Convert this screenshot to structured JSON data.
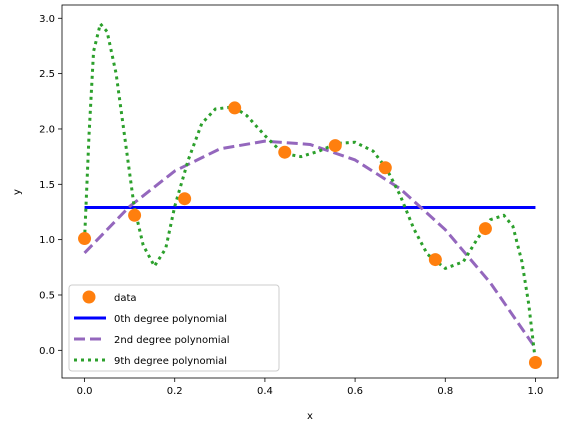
{
  "chart_data": {
    "type": "scatter",
    "xlabel": "x",
    "ylabel": "y",
    "xlim": [
      -0.05,
      1.05
    ],
    "ylim": [
      -0.25,
      3.12
    ],
    "x_ticks": [
      0.0,
      0.2,
      0.4,
      0.6,
      0.8,
      1.0
    ],
    "x_tick_labels": [
      "0.0",
      "0.2",
      "0.4",
      "0.6",
      "0.8",
      "1.0"
    ],
    "y_ticks": [
      0.0,
      0.5,
      1.0,
      1.5,
      2.0,
      2.5,
      3.0
    ],
    "y_tick_labels": [
      "0.0",
      "0.5",
      "1.0",
      "1.5",
      "2.0",
      "2.5",
      "3.0"
    ],
    "grid": false,
    "legend_position": "bottom-left",
    "series": [
      {
        "name": "data",
        "kind": "scatter",
        "color": "#ff7f0e",
        "x": [
          0.0,
          0.111,
          0.222,
          0.333,
          0.444,
          0.556,
          0.667,
          0.778,
          0.889,
          1.0
        ],
        "y": [
          1.01,
          1.22,
          1.37,
          2.19,
          1.79,
          1.85,
          1.65,
          0.82,
          1.1,
          -0.11
        ]
      },
      {
        "name": "0th degree polynomial",
        "kind": "line",
        "style": "solid",
        "color": "#0000ff",
        "x": [
          0.0,
          1.0
        ],
        "y": [
          1.29,
          1.29
        ]
      },
      {
        "name": "2nd degree polynomial",
        "kind": "line",
        "style": "dashed",
        "color": "#9467bd",
        "x": [
          0.0,
          0.1,
          0.2,
          0.3,
          0.4,
          0.5,
          0.6,
          0.7,
          0.8,
          0.9,
          1.0
        ],
        "y": [
          0.88,
          1.3,
          1.62,
          1.82,
          1.89,
          1.86,
          1.72,
          1.46,
          1.09,
          0.61,
          0.02
        ]
      },
      {
        "name": "9th degree polynomial",
        "kind": "line",
        "style": "dotted",
        "color": "#2ca02c",
        "x": [
          0.0,
          0.01,
          0.02,
          0.035,
          0.05,
          0.07,
          0.09,
          0.11,
          0.13,
          0.155,
          0.18,
          0.2,
          0.23,
          0.26,
          0.29,
          0.33,
          0.36,
          0.4,
          0.44,
          0.48,
          0.52,
          0.56,
          0.6,
          0.64,
          0.67,
          0.7,
          0.73,
          0.76,
          0.8,
          0.84,
          0.87,
          0.9,
          0.93,
          0.95,
          0.97,
          0.985,
          1.0
        ],
        "y": [
          1.0,
          1.95,
          2.7,
          2.95,
          2.88,
          2.5,
          1.9,
          1.3,
          0.95,
          0.76,
          0.92,
          1.3,
          1.72,
          2.05,
          2.18,
          2.2,
          2.12,
          1.94,
          1.78,
          1.75,
          1.8,
          1.87,
          1.88,
          1.8,
          1.64,
          1.4,
          1.1,
          0.87,
          0.74,
          0.8,
          1.0,
          1.18,
          1.22,
          1.12,
          0.8,
          0.42,
          -0.1
        ]
      }
    ]
  }
}
